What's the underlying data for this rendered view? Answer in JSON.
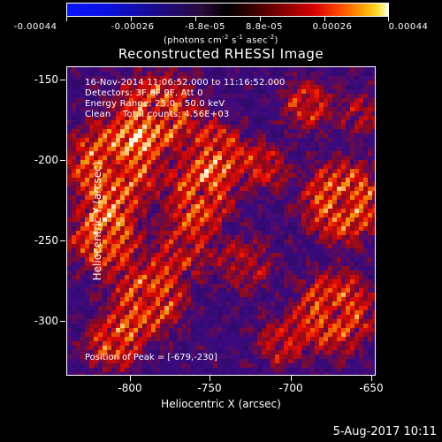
{
  "colorbar": {
    "ticks": [
      "-0.00044",
      "-0.00026",
      "-8.8e-05",
      "8.8e-05",
      "0.00026",
      "0.00044"
    ],
    "units": "(photons cm",
    "units_exp1": "-2",
    "units_mid": " s",
    "units_exp2": "-1",
    "units_end": " asec",
    "units_exp3": "-2",
    "units_close": ")"
  },
  "title": "Reconstructed RHESSI Image",
  "info": {
    "time_range": "16-Nov-2014 11:06:52.000 to 11:16:52.000",
    "detectors": "Detectors: 3F 6F 9F, Att 0",
    "energy": "Energy Range: 25.0 - 50.0 keV",
    "clean": "Clean    Total counts: 4.56E+03",
    "peak": "Position of Peak = [-679,-230]"
  },
  "x_axis": {
    "label": "Heliocentric X (arcsec)",
    "ticks": [
      "-800",
      "-750",
      "-700",
      "-650"
    ]
  },
  "y_axis": {
    "label": "Heliocentric Y (arcsec)",
    "ticks": [
      "-150",
      "-200",
      "-250",
      "-300"
    ]
  },
  "datestamp": "5-Aug-2017 10:11",
  "colors": {
    "background": "#000000",
    "foreground": "#ffffff"
  }
}
